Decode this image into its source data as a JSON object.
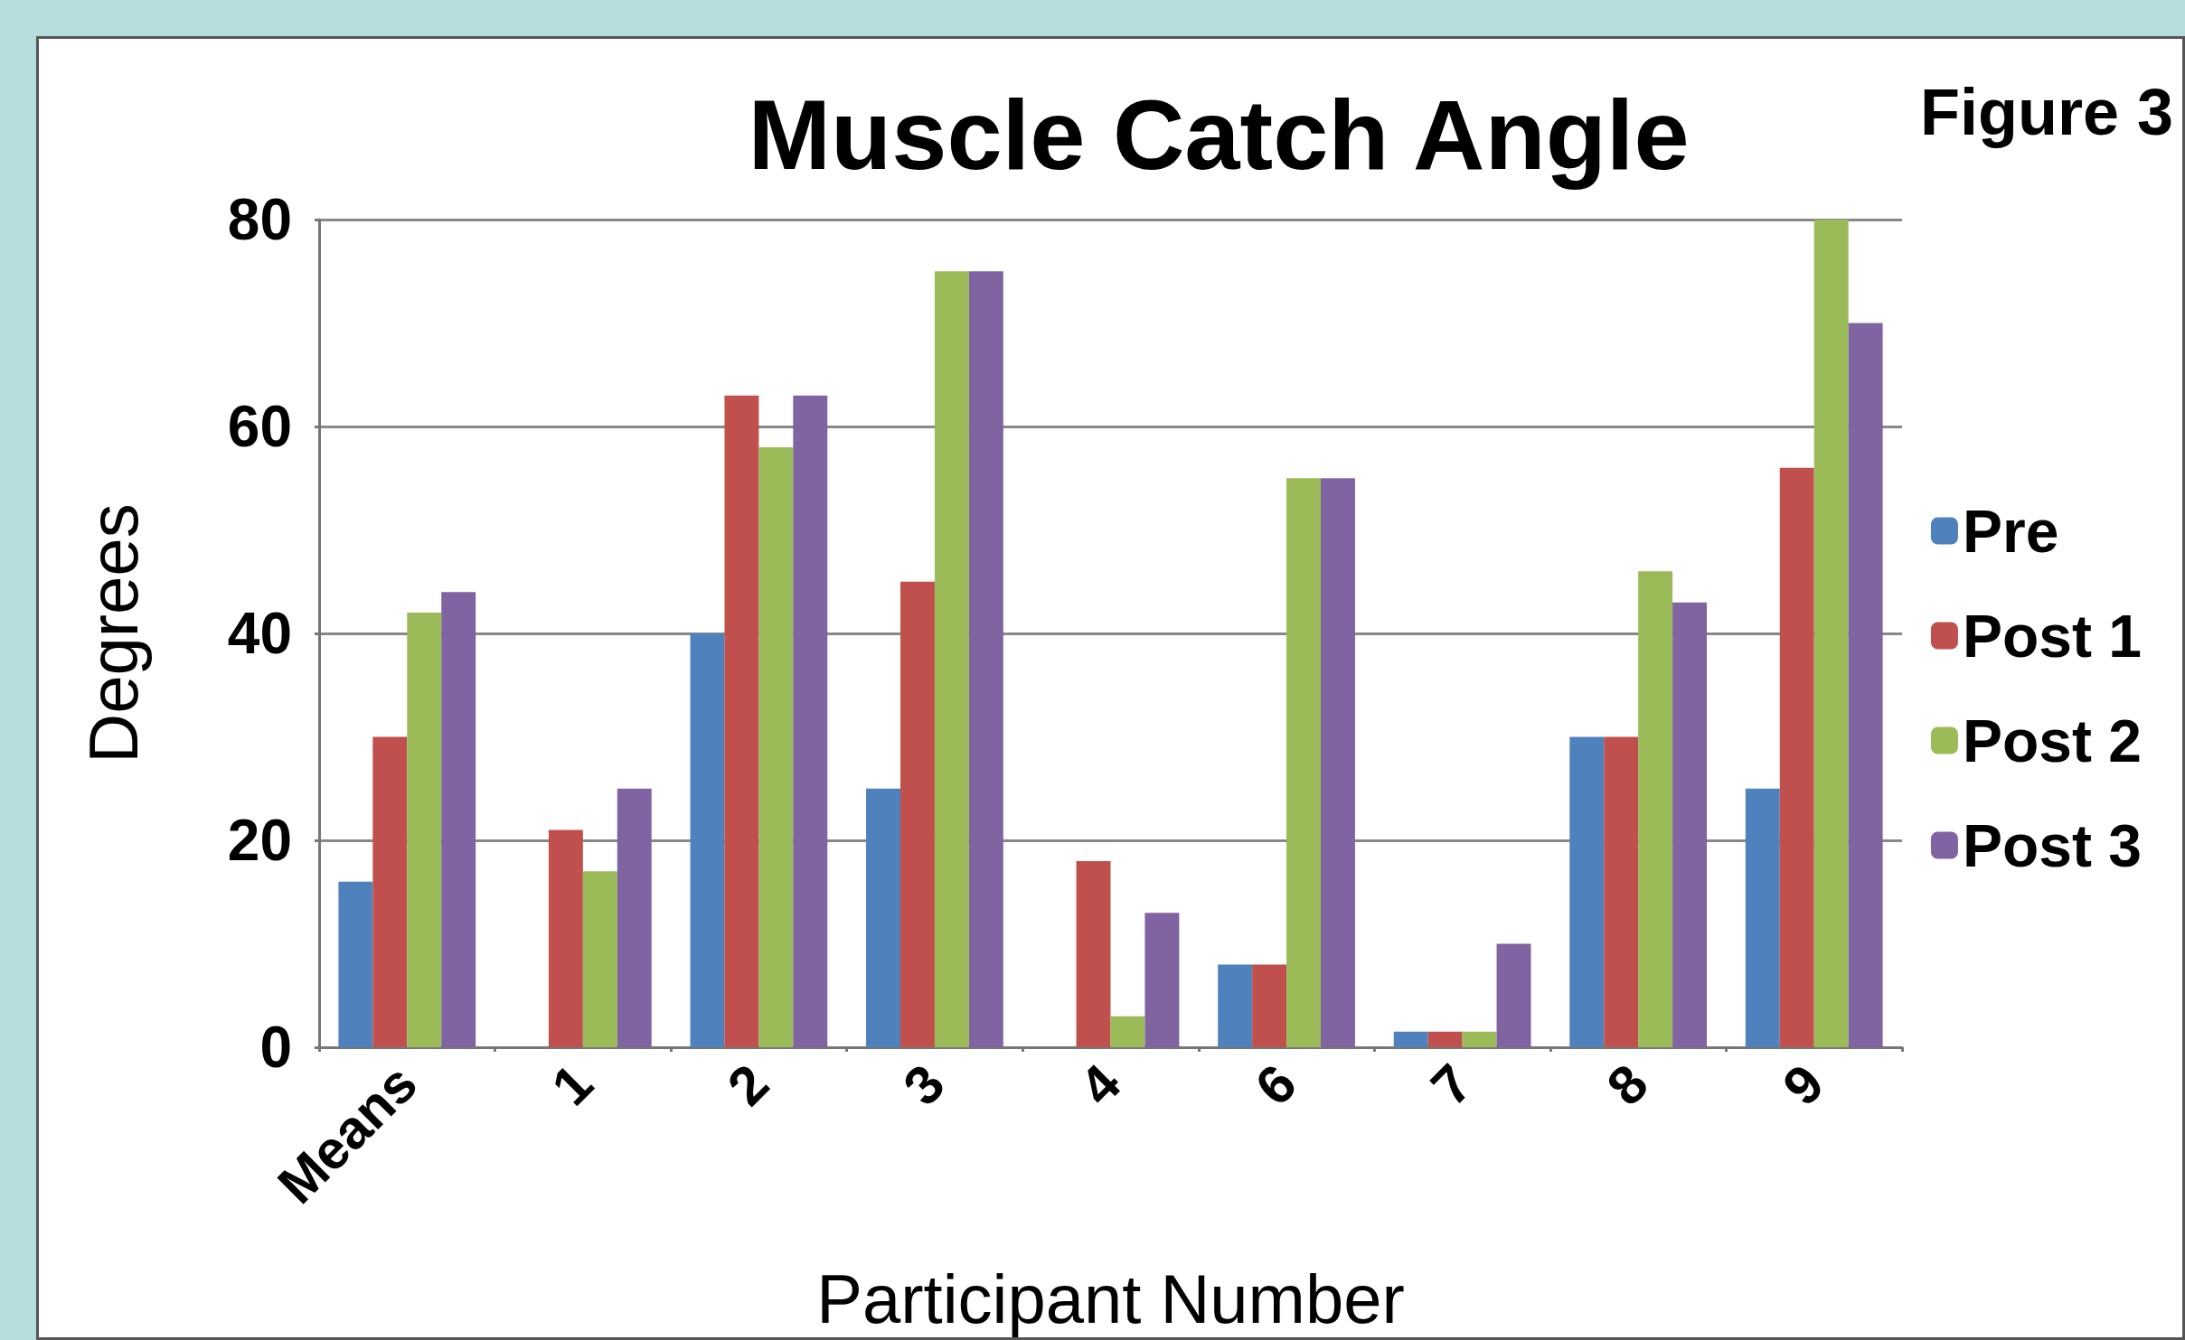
{
  "chart_data": {
    "type": "bar",
    "title": "Muscle Catch Angle",
    "xlabel": "Participant Number",
    "ylabel": "Degrees",
    "annotations": [
      "Figure 3"
    ],
    "categories": [
      "Means",
      "1",
      "2",
      "3",
      "4",
      "6",
      "7",
      "8",
      "9"
    ],
    "series": [
      {
        "name": "Pre",
        "color": "#4f81bd",
        "values": [
          16,
          0,
          40,
          25,
          0,
          8,
          1.5,
          30,
          25
        ]
      },
      {
        "name": "Post 1",
        "color": "#c0504d",
        "values": [
          30,
          21,
          63,
          45,
          18,
          8,
          1.5,
          30,
          56
        ]
      },
      {
        "name": "Post 2",
        "color": "#9bbb59",
        "values": [
          42,
          17,
          58,
          75,
          3,
          55,
          1.5,
          46,
          80
        ]
      },
      {
        "name": "Post 3",
        "color": "#8064a2",
        "values": [
          44,
          25,
          63,
          75,
          13,
          55,
          10,
          43,
          70
        ]
      }
    ],
    "ylim": [
      0,
      80
    ],
    "yticks": [
      0,
      20,
      40,
      60,
      80
    ],
    "grid": "y",
    "legend": "right"
  }
}
